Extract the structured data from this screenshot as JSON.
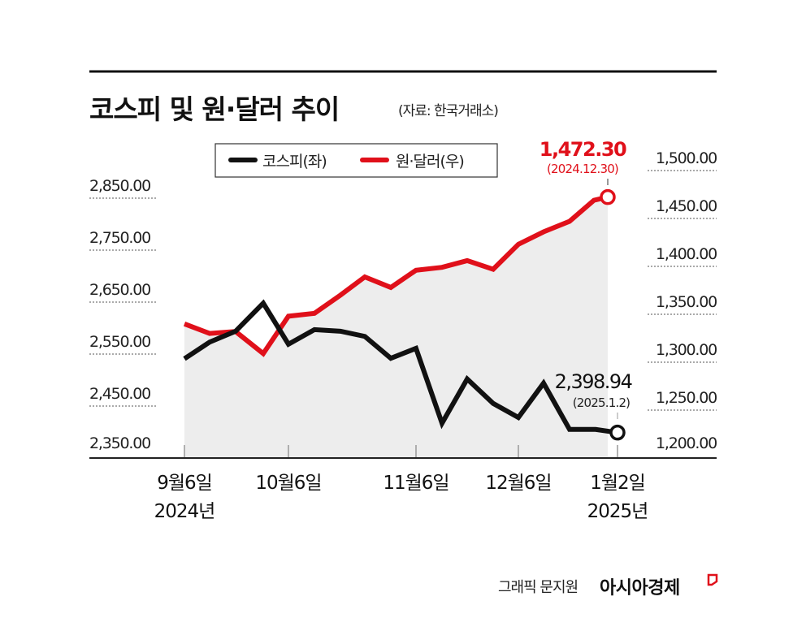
{
  "title": "코스피 및 원·달러 추이",
  "source": "(자료: 한국거래소)",
  "credit": "그래픽 문지원",
  "brand": "아시아경제",
  "colors": {
    "kospi": "#111111",
    "krw_usd": "#e0101a",
    "fill": "#ededed",
    "annotation_red": "#e0101a"
  },
  "chart_data": {
    "type": "line",
    "title": "코스피 및 원·달러 추이",
    "legend": {
      "position": "top",
      "entries": [
        "코스피(좌)",
        "원·달러(우)"
      ]
    },
    "x_tick_labels": [
      {
        "index": 0,
        "line1": "9월6일",
        "line2": "2024년"
      },
      {
        "index": 4,
        "line1": "10월6일",
        "line2": ""
      },
      {
        "index": 9,
        "line1": "11월6일",
        "line2": ""
      },
      {
        "index": 13,
        "line1": "12월6일",
        "line2": ""
      },
      {
        "index": 17,
        "line1": "1월2일",
        "line2": "2025년"
      }
    ],
    "left_axis": {
      "ylim": [
        2350,
        2850
      ],
      "ticks": [
        "2,350.00",
        "2,450.00",
        "2,550.00",
        "2,650.00",
        "2,750.00",
        "2,850.00"
      ],
      "tick_values": [
        2350,
        2450,
        2550,
        2650,
        2750,
        2850
      ]
    },
    "right_axis": {
      "ylim": [
        1200,
        1500
      ],
      "ticks": [
        "1,200.00",
        "1,250.00",
        "1,300.00",
        "1,350.00",
        "1,400.00",
        "1,450.00",
        "1,500.00"
      ],
      "tick_values": [
        1200,
        1250,
        1300,
        1350,
        1400,
        1450,
        1500
      ]
    },
    "grid": "dotted",
    "series": [
      {
        "name": "코스피(좌)",
        "axis": "left",
        "values": [
          2541,
          2573,
          2594,
          2648,
          2569,
          2597,
          2594,
          2584,
          2542,
          2561,
          2417,
          2502,
          2455,
          2428,
          2494,
          2405,
          2405,
          2398.94
        ]
      },
      {
        "name": "원·달러(우)",
        "axis": "right",
        "values": [
          1340,
          1330,
          1332,
          1309,
          1348,
          1351,
          1370,
          1389,
          1378,
          1396,
          1399,
          1406,
          1397,
          1423,
          1436,
          1447,
          1469,
          1472.3
        ]
      }
    ],
    "annotations": [
      {
        "series": "원·달러(우)",
        "value": "1,472.30",
        "date": "(2024.12.30)"
      },
      {
        "series": "코스피(좌)",
        "value": "2,398.94",
        "date": "(2025.1.2)"
      }
    ]
  }
}
